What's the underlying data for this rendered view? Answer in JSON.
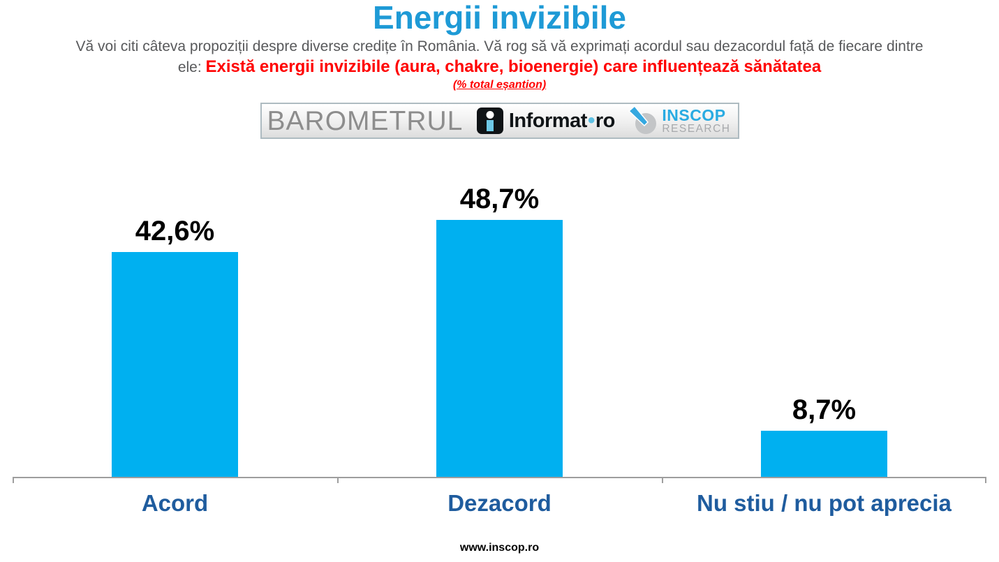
{
  "title": "Energii invizibile",
  "subtitle": {
    "line1": "Vă voi citi câteva propoziții despre diverse credițe în România. Vă rog să vă exprimați acordul sau dezacordul față de fiecare dintre",
    "line2_prefix": "ele: ",
    "line2_highlight": "Există energii invizibile (aura, chakre, bioenergie) care influențează sănătatea",
    "note": "(% total eșantion)"
  },
  "logos": {
    "barometrul": "BAROMETRUL",
    "informat": {
      "name": "Informat",
      "separator": "•",
      "tld": "ro"
    },
    "inscop": {
      "line1": "INSCOP",
      "line2": "RESEARCH"
    }
  },
  "chart_data": {
    "type": "bar",
    "title": "Energii invizibile",
    "subtitle_note": "(% total eșantion)",
    "categories": [
      "Acord",
      "Dezacord",
      "Nu stiu / nu pot aprecia"
    ],
    "values": [
      42.6,
      48.7,
      8.7
    ],
    "value_labels": [
      "42,6%",
      "48,7%",
      "8,7%"
    ],
    "xlabel": "",
    "ylabel": "",
    "ylim": [
      0,
      55
    ],
    "grid": false,
    "legend": false,
    "bar_color": "#00B0F0",
    "category_label_color": "#1F5C9E",
    "value_label_color": "#000000"
  },
  "colors": {
    "accent_blue": "#1E9AD6",
    "bar_color": "#00B0F0",
    "dark_blue": "#1F5C9E",
    "red": "#FF0000",
    "gray_text": "#58595B"
  },
  "footer": "www.inscop.ro"
}
